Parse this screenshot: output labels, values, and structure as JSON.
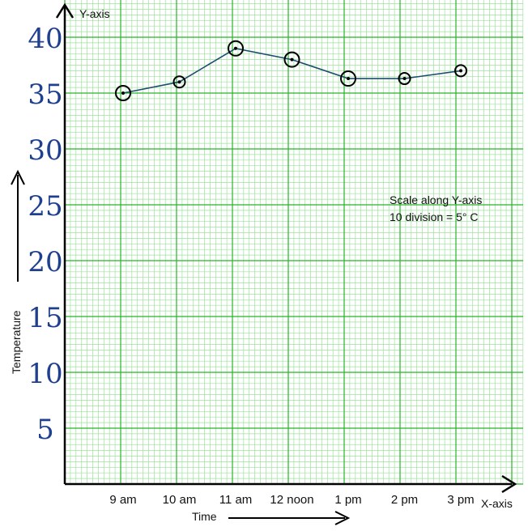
{
  "chart_data": {
    "type": "line",
    "title": "",
    "xlabel": "Time",
    "ylabel": "Temperature",
    "x_axis_name": "X-axis",
    "y_axis_name": "Y-axis",
    "categories": [
      "9 am",
      "10 am",
      "11 am",
      "12 noon",
      "1 pm",
      "2 pm",
      "3 pm"
    ],
    "values": [
      35,
      36,
      39,
      38,
      36.3,
      36.3,
      37
    ],
    "yticks": [
      "5",
      "10",
      "15",
      "20",
      "25",
      "30",
      "35",
      "40"
    ],
    "ylim": [
      0,
      42
    ],
    "grid": true,
    "annotation": {
      "line1": "Scale along Y-axis",
      "line2": "10 division = 5° C"
    }
  },
  "colors": {
    "grid_major": "#27b527",
    "grid_minor": "#9ee29e",
    "axis": "#000000",
    "line": "#1d4d6e",
    "marker": "#000000",
    "ytick_text": "#1f3f8f"
  }
}
